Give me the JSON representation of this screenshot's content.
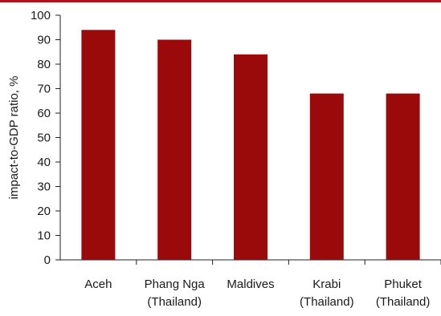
{
  "colors": {
    "bar": "#9b0a0a",
    "accent_band": "#b3121a",
    "axis": "#222222",
    "text": "#1a1a1a"
  },
  "chart_data": {
    "type": "bar",
    "title": "",
    "xlabel": "",
    "ylabel": "impact-to-GDP ratio, %",
    "categories": [
      [
        "Aceh"
      ],
      [
        "Phang Nga",
        "(Thailand)"
      ],
      [
        "Maldives"
      ],
      [
        "Krabi",
        "(Thailand)"
      ],
      [
        "Phuket",
        "(Thailand)"
      ]
    ],
    "values": [
      94,
      90,
      84,
      68,
      68
    ],
    "ylim": [
      0,
      100
    ],
    "yticks": [
      0,
      10,
      20,
      30,
      40,
      50,
      60,
      70,
      80,
      90,
      100
    ],
    "grid": false,
    "legend": "none"
  }
}
